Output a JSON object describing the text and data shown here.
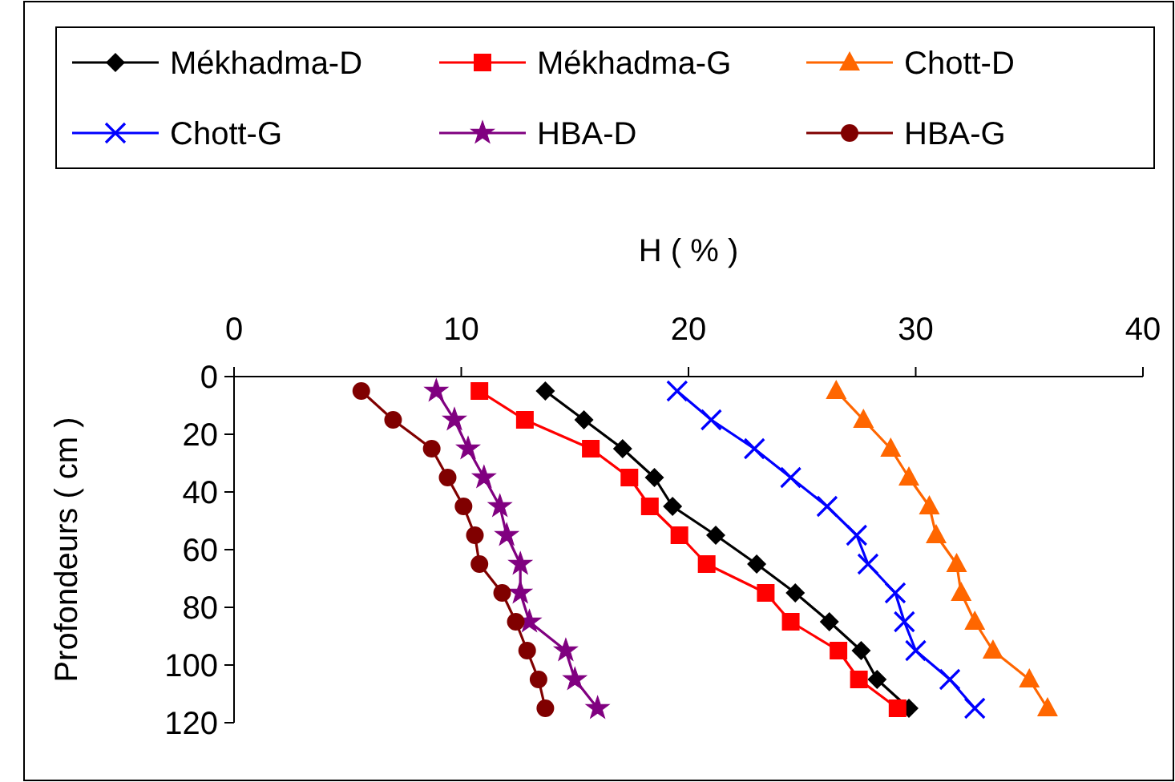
{
  "chart_data": {
    "type": "line",
    "xlabel": "H ( % )",
    "ylabel": "Profondeurs ( cm )",
    "xlim": [
      0,
      40
    ],
    "xticks": [
      0,
      10,
      20,
      30,
      40
    ],
    "ylim": [
      120,
      0
    ],
    "yticks": [
      0,
      20,
      40,
      60,
      80,
      100,
      120
    ],
    "grid": false,
    "legend": "top",
    "line_style": "solid",
    "series": [
      {
        "name": "Mékhadma-D",
        "color": "#000000",
        "marker": "diamond",
        "x": [
          13.7,
          15.4,
          17.1,
          18.5,
          19.3,
          21.2,
          23.0,
          24.7,
          26.2,
          27.6,
          28.3,
          29.7
        ],
        "values": [
          5,
          15,
          25,
          35,
          45,
          55,
          65,
          75,
          85,
          95,
          105,
          115
        ]
      },
      {
        "name": "Mékhadma-G",
        "color": "#ff0000",
        "marker": "square",
        "x": [
          10.8,
          12.8,
          15.7,
          17.4,
          18.3,
          19.6,
          20.8,
          23.4,
          24.5,
          26.6,
          27.5,
          29.2
        ],
        "values": [
          5,
          15,
          25,
          35,
          45,
          55,
          65,
          75,
          85,
          95,
          105,
          115
        ]
      },
      {
        "name": "Chott-D",
        "color": "#ff6600",
        "marker": "triangle",
        "x": [
          26.5,
          27.7,
          28.9,
          29.7,
          30.6,
          30.9,
          31.8,
          32.0,
          32.6,
          33.4,
          35.0,
          35.8
        ],
        "values": [
          5,
          15,
          25,
          35,
          45,
          55,
          65,
          75,
          85,
          95,
          105,
          115
        ]
      },
      {
        "name": "Chott-G",
        "color": "#0000ff",
        "marker": "cross",
        "x": [
          19.5,
          21.0,
          22.9,
          24.5,
          26.1,
          27.4,
          27.9,
          29.1,
          29.5,
          30.0,
          31.5,
          32.6
        ],
        "values": [
          5,
          15,
          25,
          35,
          45,
          55,
          65,
          75,
          85,
          95,
          105,
          115
        ]
      },
      {
        "name": "HBA-D",
        "color": "#800080",
        "marker": "star",
        "x": [
          8.9,
          9.7,
          10.3,
          11.0,
          11.7,
          12.0,
          12.6,
          12.6,
          13.0,
          14.6,
          15.0,
          16.0
        ],
        "values": [
          5,
          15,
          25,
          35,
          45,
          55,
          65,
          75,
          85,
          95,
          105,
          115
        ]
      },
      {
        "name": "HBA-G",
        "color": "#800000",
        "marker": "circle",
        "x": [
          5.6,
          7.0,
          8.7,
          9.4,
          10.1,
          10.6,
          10.8,
          11.8,
          12.4,
          12.9,
          13.4,
          13.7
        ],
        "values": [
          5,
          15,
          25,
          35,
          45,
          55,
          65,
          75,
          85,
          95,
          105,
          115
        ]
      }
    ]
  }
}
